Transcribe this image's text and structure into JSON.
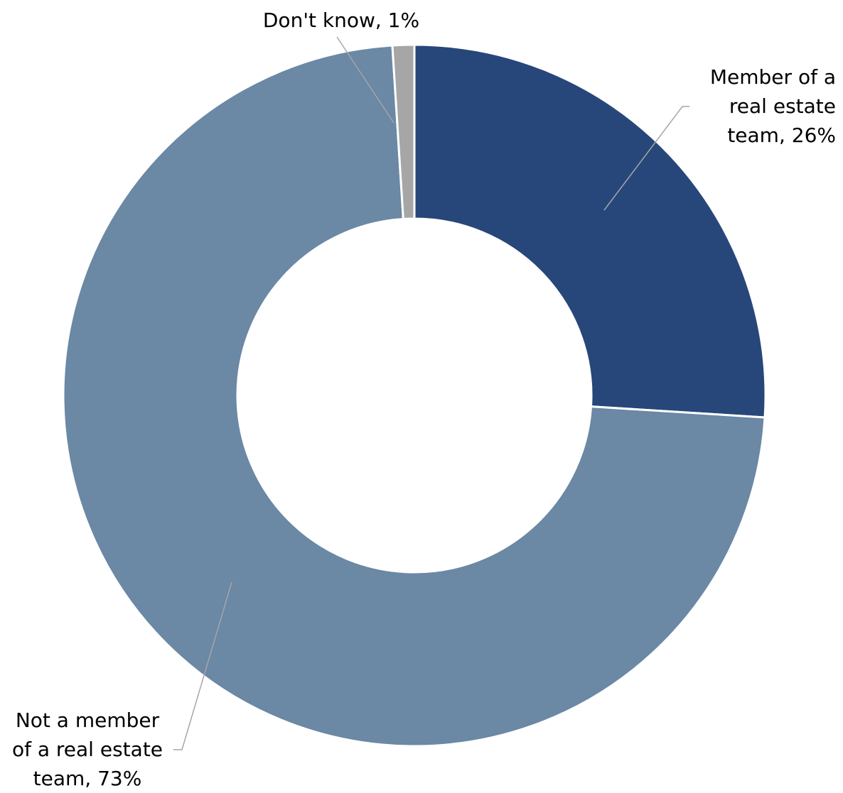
{
  "chart_data": {
    "type": "pie",
    "variant": "donut",
    "start_angle_deg": 0,
    "direction": "clockwise",
    "slices": [
      {
        "name": "Member of a real estate team",
        "value": 26,
        "label_lines": [
          "Member of a",
          "real estate",
          "team, 26%"
        ],
        "color": "#27477a"
      },
      {
        "name": "Not a member of a real estate team",
        "value": 73,
        "label_lines": [
          "Not a member",
          "of a real estate",
          "team, 73%"
        ],
        "color": "#6b88a5"
      },
      {
        "name": "Don't know",
        "value": 1,
        "label_lines": [
          "Don't know, 1%"
        ],
        "color": "#a6a6a6"
      }
    ]
  },
  "colors": {
    "slice_border": "#ffffff",
    "leader_line": "#a6a6a6"
  }
}
